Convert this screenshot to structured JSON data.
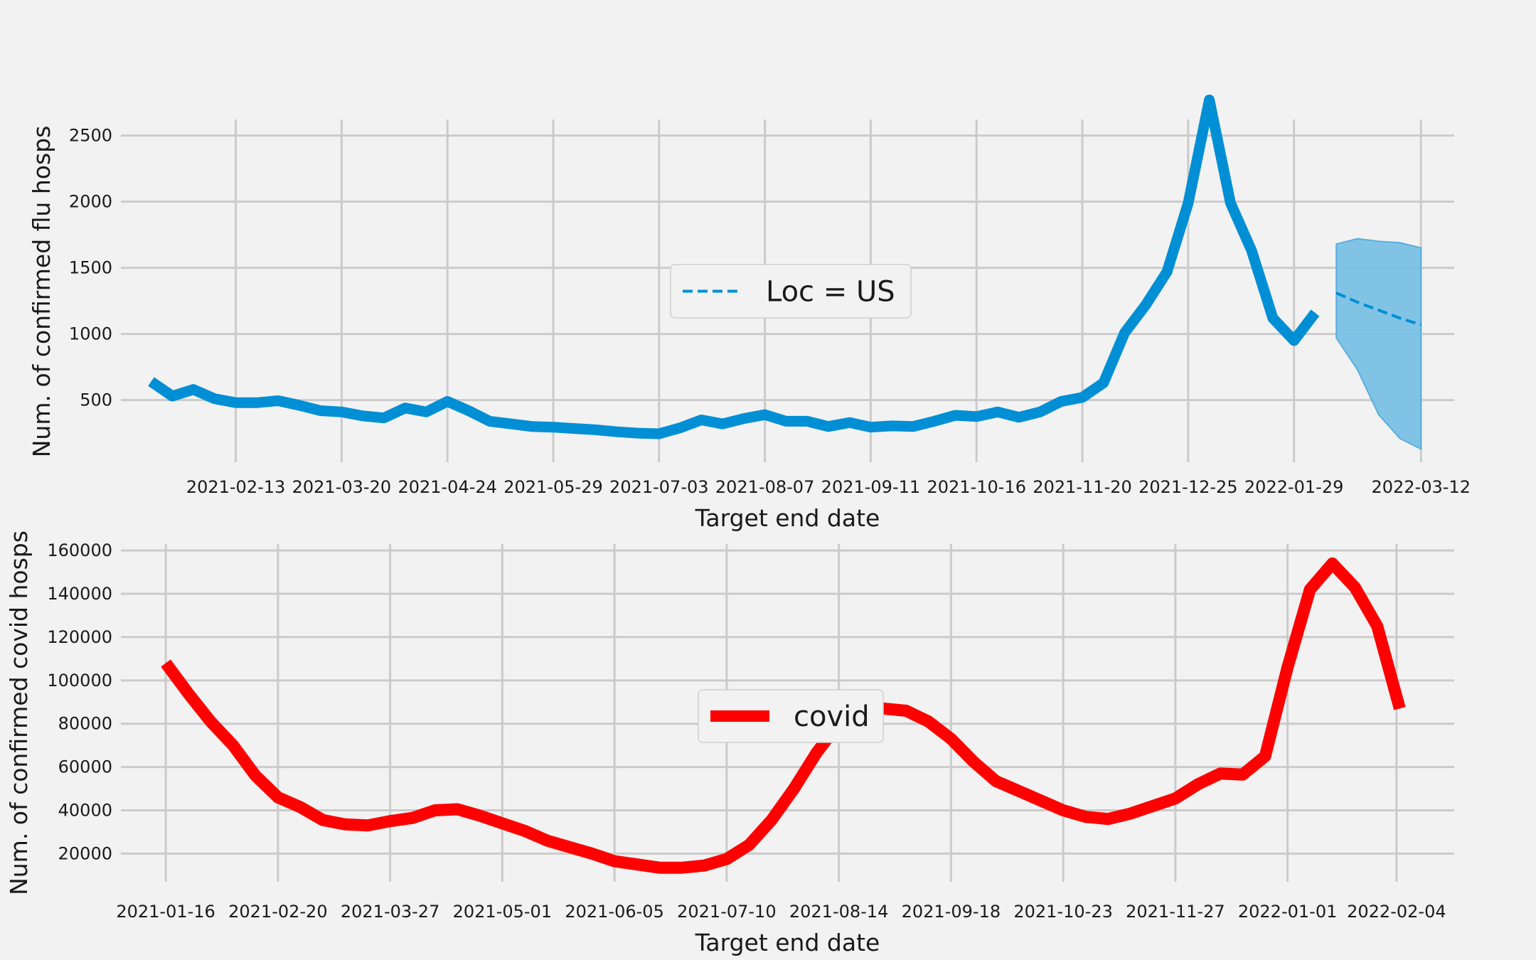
{
  "chart_data": [
    {
      "type": "line",
      "title": "",
      "xlabel": "Target end date",
      "ylabel": "Num. of confirmed flu hosps",
      "x_ticks": [
        "2021-02-13",
        "2021-03-20",
        "2021-04-24",
        "2021-05-29",
        "2021-07-03",
        "2021-08-07",
        "2021-09-11",
        "2021-10-16",
        "2021-11-20",
        "2021-12-25",
        "2022-01-29",
        "2022-03-12"
      ],
      "y_ticks": [
        500,
        1000,
        1500,
        2000,
        2500
      ],
      "xlim": [
        "2021-01-06",
        "2022-03-23"
      ],
      "ylim": [
        30,
        2880
      ],
      "grid": true,
      "legend": {
        "position": "center",
        "entries": [
          "Loc = US"
        ]
      },
      "colors": {
        "observed": "#008fd5",
        "forecast": "#008fd5",
        "interval": "#7ac0e4"
      },
      "series": [
        {
          "style": "solid",
          "x": [
            "2021-01-16",
            "2021-01-23",
            "2021-01-30",
            "2021-02-06",
            "2021-02-13",
            "2021-02-20",
            "2021-02-27",
            "2021-03-06",
            "2021-03-13",
            "2021-03-20",
            "2021-03-27",
            "2021-04-03",
            "2021-04-10",
            "2021-04-17",
            "2021-04-24",
            "2021-05-01",
            "2021-05-08",
            "2021-05-15",
            "2021-05-22",
            "2021-05-29",
            "2021-06-05",
            "2021-06-12",
            "2021-06-19",
            "2021-06-26",
            "2021-07-03",
            "2021-07-10",
            "2021-07-17",
            "2021-07-24",
            "2021-07-31",
            "2021-08-07",
            "2021-08-14",
            "2021-08-21",
            "2021-08-28",
            "2021-09-04",
            "2021-09-11",
            "2021-09-18",
            "2021-09-25",
            "2021-10-02",
            "2021-10-09",
            "2021-10-16",
            "2021-10-23",
            "2021-10-30",
            "2021-11-06",
            "2021-11-13",
            "2021-11-20",
            "2021-11-27",
            "2021-12-04",
            "2021-12-11",
            "2021-12-18",
            "2021-12-25",
            "2022-01-01",
            "2022-01-08",
            "2022-01-15",
            "2022-01-22",
            "2022-01-29",
            "2022-02-05"
          ],
          "values": [
            640,
            530,
            580,
            510,
            480,
            480,
            495,
            460,
            420,
            410,
            380,
            365,
            440,
            410,
            490,
            420,
            340,
            320,
            300,
            295,
            285,
            275,
            260,
            250,
            245,
            290,
            350,
            320,
            360,
            390,
            340,
            340,
            300,
            330,
            295,
            305,
            300,
            340,
            385,
            375,
            410,
            370,
            410,
            490,
            520,
            630,
            1010,
            1220,
            1470,
            1990,
            2770,
            1990,
            1630,
            1120,
            950,
            1160
          ]
        },
        {
          "name": "Loc = US",
          "style": "dashed",
          "x": [
            "2022-02-12",
            "2022-02-19",
            "2022-02-26",
            "2022-03-05",
            "2022-03-12"
          ],
          "values": [
            1310,
            1240,
            1180,
            1120,
            1070
          ],
          "lower": [
            970,
            730,
            390,
            210,
            130
          ],
          "upper": [
            1680,
            1720,
            1700,
            1690,
            1650
          ]
        }
      ]
    },
    {
      "type": "line",
      "title": "",
      "xlabel": "Target end date",
      "ylabel": "Num. of confirmed covid hosps",
      "x_ticks": [
        "2021-01-16",
        "2021-02-20",
        "2021-03-27",
        "2021-05-01",
        "2021-06-05",
        "2021-07-10",
        "2021-08-14",
        "2021-09-18",
        "2021-10-23",
        "2021-11-27",
        "2022-01-01",
        "2022-02-04"
      ],
      "y_ticks": [
        20000,
        40000,
        60000,
        80000,
        100000,
        120000,
        140000,
        160000
      ],
      "xlim": [
        "2021-01-02",
        "2022-02-22"
      ],
      "ylim": [
        7000,
        163000
      ],
      "grid": true,
      "legend": {
        "position": "center",
        "entries": [
          "covid"
        ]
      },
      "colors": {
        "covid": "#ff0000"
      },
      "series": [
        {
          "name": "covid",
          "x": [
            "2021-01-16",
            "2021-01-23",
            "2021-01-30",
            "2021-02-06",
            "2021-02-13",
            "2021-02-20",
            "2021-02-27",
            "2021-03-06",
            "2021-03-13",
            "2021-03-20",
            "2021-03-27",
            "2021-04-03",
            "2021-04-10",
            "2021-04-17",
            "2021-04-24",
            "2021-05-01",
            "2021-05-08",
            "2021-05-15",
            "2021-05-22",
            "2021-05-29",
            "2021-06-05",
            "2021-06-12",
            "2021-06-19",
            "2021-06-26",
            "2021-07-03",
            "2021-07-10",
            "2021-07-17",
            "2021-07-24",
            "2021-07-31",
            "2021-08-07",
            "2021-08-14",
            "2021-08-21",
            "2021-08-28",
            "2021-09-04",
            "2021-09-11",
            "2021-09-18",
            "2021-09-25",
            "2021-10-02",
            "2021-10-09",
            "2021-10-16",
            "2021-10-23",
            "2021-10-30",
            "2021-11-06",
            "2021-11-13",
            "2021-11-20",
            "2021-11-27",
            "2021-12-04",
            "2021-12-11",
            "2021-12-18",
            "2021-12-25",
            "2022-01-01",
            "2022-01-08",
            "2022-01-15",
            "2022-01-22",
            "2022-01-29",
            "2022-02-05"
          ],
          "values": [
            108000,
            94000,
            81000,
            70000,
            56000,
            46000,
            41500,
            35500,
            33500,
            33000,
            35000,
            36500,
            40000,
            40500,
            37500,
            34000,
            30500,
            26000,
            23000,
            20000,
            16500,
            15000,
            13500,
            13500,
            14500,
            17500,
            24000,
            35500,
            50000,
            66500,
            80000,
            87000,
            87000,
            86000,
            81000,
            73000,
            62500,
            53500,
            49000,
            44500,
            40000,
            37000,
            36000,
            38500,
            42000,
            45500,
            52000,
            57000,
            56500,
            65000,
            106000,
            142000,
            154000,
            143000,
            125000,
            87000
          ]
        }
      ]
    }
  ]
}
